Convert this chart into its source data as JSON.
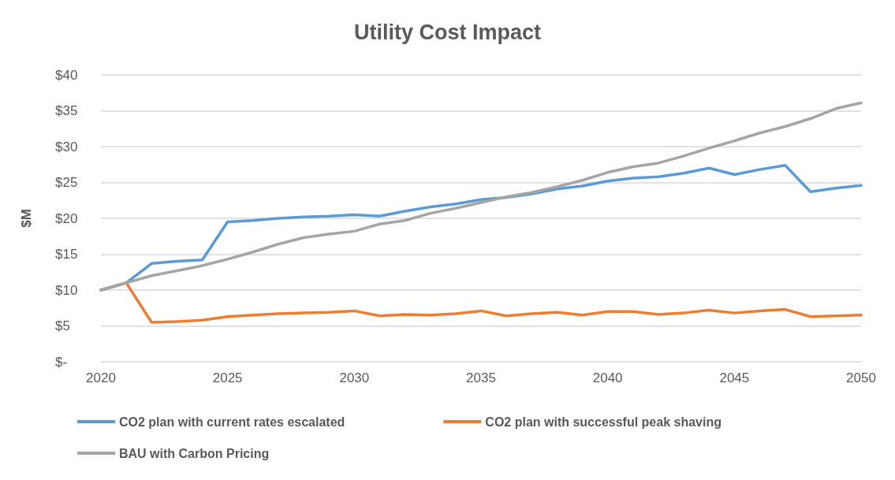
{
  "chart_data": {
    "type": "line",
    "title": "Utility Cost Impact",
    "ylabel": "$M",
    "x": [
      2020,
      2021,
      2022,
      2023,
      2024,
      2025,
      2026,
      2027,
      2028,
      2029,
      2030,
      2031,
      2032,
      2033,
      2034,
      2035,
      2036,
      2037,
      2038,
      2039,
      2040,
      2041,
      2042,
      2043,
      2044,
      2045,
      2046,
      2047,
      2048,
      2049,
      2050
    ],
    "series": [
      {
        "name": "CO2 plan with current rates escalated",
        "color": "#5b9bd5",
        "values": [
          10,
          11,
          13.7,
          14.0,
          14.2,
          19.5,
          19.7,
          20.0,
          20.2,
          20.3,
          20.5,
          20.3,
          21.0,
          21.6,
          22.0,
          22.6,
          22.9,
          23.4,
          24.1,
          24.5,
          25.2,
          25.6,
          25.8,
          26.3,
          27.0,
          26.1,
          26.8,
          27.4,
          23.7,
          24.2,
          24.6
        ]
      },
      {
        "name": "CO2 plan with successful peak shaving",
        "color": "#ed7d31",
        "values": [
          10,
          11,
          5.5,
          5.6,
          5.8,
          6.3,
          6.5,
          6.7,
          6.8,
          6.9,
          7.1,
          6.4,
          6.6,
          6.5,
          6.7,
          7.1,
          6.4,
          6.7,
          6.9,
          6.5,
          7.0,
          7.0,
          6.6,
          6.8,
          7.2,
          6.8,
          7.1,
          7.3,
          6.3,
          6.4,
          6.5
        ]
      },
      {
        "name": "BAU with Carbon Pricing",
        "color": "#a5a5a5",
        "values": [
          10,
          11,
          12.0,
          12.7,
          13.4,
          14.3,
          15.3,
          16.4,
          17.3,
          17.8,
          18.2,
          19.2,
          19.7,
          20.7,
          21.4,
          22.2,
          23.0,
          23.6,
          24.4,
          25.3,
          26.4,
          27.2,
          27.7,
          28.7,
          29.8,
          30.8,
          31.9,
          32.8,
          33.9,
          35.3,
          36.1
        ]
      }
    ],
    "xlim": [
      2020,
      2050
    ],
    "xticks": [
      2020,
      2025,
      2030,
      2035,
      2040,
      2045,
      2050
    ],
    "ylim": [
      0,
      40
    ],
    "yticks": [
      {
        "value": 0,
        "label": "$-"
      },
      {
        "value": 5,
        "label": "$5"
      },
      {
        "value": 10,
        "label": "$10"
      },
      {
        "value": 15,
        "label": "$15"
      },
      {
        "value": 20,
        "label": "$20"
      },
      {
        "value": 25,
        "label": "$25"
      },
      {
        "value": 30,
        "label": "$30"
      },
      {
        "value": 35,
        "label": "$35"
      },
      {
        "value": 40,
        "label": "$40"
      }
    ],
    "grid": "y",
    "legend": "bottom",
    "marker": "none",
    "line_style": "solid"
  }
}
